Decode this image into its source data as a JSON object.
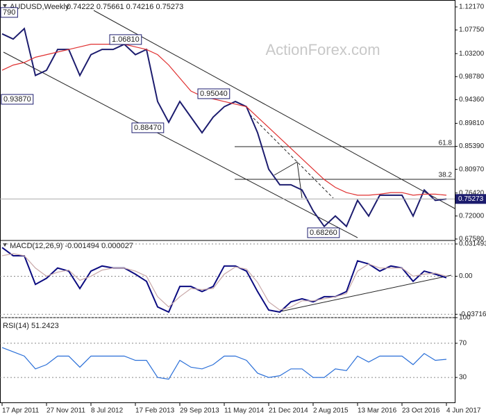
{
  "chart_data": [
    {
      "type": "line",
      "title": "AUDUSD,Weekly",
      "ohlc_label": "0.74222 0.75661 0.74216 0.75273",
      "watermark": "ActionForex.com",
      "ylim": [
        0.673,
        1.135
      ],
      "yticks": [
        {
          "value": 1.1217,
          "label": "1.12170"
        },
        {
          "value": 1.0775,
          "label": "1.07750"
        },
        {
          "value": 1.032,
          "label": "1.03200"
        },
        {
          "value": 0.9878,
          "label": "0.98780"
        },
        {
          "value": 0.9436,
          "label": "0.94360"
        },
        {
          "value": 0.8981,
          "label": "0.89810"
        },
        {
          "value": 0.8539,
          "label": "0.85390"
        },
        {
          "value": 0.8097,
          "label": "0.80970"
        },
        {
          "value": 0.7642,
          "label": "0.76420"
        },
        {
          "value": 0.72,
          "label": "0.72000"
        },
        {
          "value": 0.6758,
          "label": "0.67580"
        }
      ],
      "grid": false,
      "annotations": [
        "790",
        "1.06810",
        "0.93870",
        "0.88470",
        "0.95040",
        "0.68260"
      ],
      "fib_labels": [
        "61.8",
        "38.2"
      ],
      "series": [
        {
          "name": "close",
          "color": "#1c1c6e",
          "values": [
            1.07,
            1.06,
            1.08,
            0.99,
            1.0,
            1.04,
            1.04,
            0.99,
            1.03,
            1.04,
            1.04,
            1.05,
            1.03,
            1.04,
            0.94,
            0.9,
            0.94,
            0.91,
            0.88,
            0.91,
            0.93,
            0.94,
            0.93,
            0.88,
            0.81,
            0.78,
            0.78,
            0.77,
            0.73,
            0.7,
            0.72,
            0.7,
            0.75,
            0.72,
            0.76,
            0.76,
            0.76,
            0.72,
            0.77,
            0.75,
            0.75273
          ]
        },
        {
          "name": "moving average",
          "color": "#e03030",
          "values": [
            1.0,
            1.01,
            1.015,
            1.025,
            1.03,
            1.035,
            1.04,
            1.045,
            1.05,
            1.05,
            1.05,
            1.05,
            1.045,
            1.04,
            1.03,
            1.01,
            0.985,
            0.96,
            0.95,
            0.945,
            0.94,
            0.935,
            0.93,
            0.91,
            0.89,
            0.87,
            0.85,
            0.83,
            0.81,
            0.79,
            0.775,
            0.765,
            0.76,
            0.76,
            0.762,
            0.765,
            0.765,
            0.76,
            0.762,
            0.762,
            0.76
          ]
        }
      ]
    },
    {
      "type": "line",
      "title": "MACD(12,26,9) -0.001494 0.000027",
      "ylim": [
        -0.0404,
        0.0349
      ],
      "yticks": [
        0.031493,
        {
          "value": 0,
          "label": "0.00"
        },
        -0.037164
      ],
      "grid": true,
      "series": [
        {
          "name": "MACD",
          "color": "#0b0b80",
          "values": [
            0.028,
            0.02,
            0.02,
            -0.008,
            -0.002,
            0.008,
            0.005,
            -0.012,
            0.005,
            0.01,
            0.008,
            0.008,
            0.002,
            -0.005,
            -0.03,
            -0.035,
            -0.01,
            -0.01,
            -0.015,
            -0.01,
            0.01,
            0.01,
            0.005,
            -0.015,
            -0.033,
            -0.035,
            -0.025,
            -0.022,
            -0.025,
            -0.02,
            -0.02,
            -0.015,
            0.015,
            0.012,
            0.005,
            0.01,
            0.008,
            -0.005,
            0.005,
            0.002,
            -0.0015
          ]
        },
        {
          "name": "signal",
          "color": "#c8a8a8",
          "values": [
            0.02,
            0.022,
            0.02,
            0.008,
            0.0,
            0.004,
            0.006,
            -0.004,
            0.0,
            0.006,
            0.008,
            0.008,
            0.005,
            0.0,
            -0.02,
            -0.03,
            -0.02,
            -0.012,
            -0.013,
            -0.012,
            0.002,
            0.009,
            0.007,
            -0.006,
            -0.025,
            -0.033,
            -0.03,
            -0.024,
            -0.024,
            -0.022,
            -0.02,
            -0.017,
            0.005,
            0.012,
            0.008,
            0.008,
            0.008,
            0.0,
            0.002,
            0.003,
            2.7e-05
          ]
        }
      ]
    },
    {
      "type": "line",
      "title": "RSI(14) 51.2423",
      "ylim": [
        0,
        100
      ],
      "yticks": [
        100,
        70,
        30
      ],
      "grid": true,
      "categories": [
        "17 Apr 2011",
        null,
        null,
        null,
        "27 Nov 2011",
        null,
        null,
        null,
        "8 Jul 2012",
        null,
        null,
        null,
        "17 Feb 2013",
        null,
        null,
        null,
        "29 Sep 2013",
        null,
        null,
        null,
        "11 May 2014",
        null,
        null,
        null,
        "21 Dec 2014",
        null,
        null,
        null,
        "2 Aug 2015",
        null,
        null,
        null,
        "13 Mar 2016",
        null,
        null,
        null,
        "23 Oct 2016",
        null,
        null,
        null,
        "4 Jun 2017"
      ],
      "series": [
        {
          "name": "RSI",
          "color": "#2a6fd8",
          "values": [
            65,
            60,
            55,
            40,
            45,
            55,
            55,
            42,
            55,
            55,
            55,
            55,
            50,
            50,
            30,
            28,
            50,
            42,
            40,
            45,
            55,
            55,
            50,
            35,
            30,
            32,
            40,
            40,
            30,
            30,
            40,
            38,
            55,
            48,
            55,
            55,
            55,
            45,
            58,
            50,
            51.2423
          ]
        }
      ]
    }
  ]
}
